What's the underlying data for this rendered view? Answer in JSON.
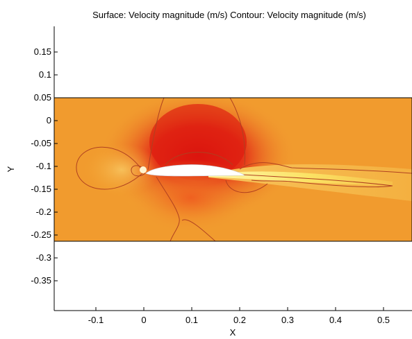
{
  "chart_data": {
    "type": "heatmap",
    "title": "Surface: Velocity magnitude (m/s) Contour: Velocity magnitude (m/s)",
    "xlabel": "X",
    "ylabel": "Y",
    "xlim": [
      -0.18,
      0.56
    ],
    "ylim": [
      -0.39,
      0.2
    ],
    "x_ticks": [
      -0.1,
      0,
      0.1,
      0.2,
      0.3,
      0.4,
      0.5
    ],
    "x_tick_labels": [
      "-0.1",
      "0",
      "0.1",
      "0.2",
      "0.3",
      "0.4",
      "0.5"
    ],
    "y_ticks": [
      0.15,
      0.1,
      0.05,
      0,
      -0.05,
      -0.1,
      -0.15,
      -0.2,
      -0.25,
      -0.3,
      -0.35
    ],
    "y_tick_labels": [
      "0.15",
      "0.1",
      "0.05",
      "0",
      "-0.05",
      "-0.1",
      "-0.15",
      "-0.2",
      "-0.25",
      "-0.3",
      "-0.35"
    ],
    "domain": {
      "x": [
        -0.18,
        0.56
      ],
      "y": [
        -0.25,
        0.05
      ]
    },
    "grid": false,
    "colors": {
      "background": "#f2a230",
      "high_speed": "#d01010",
      "wake": "#fff080",
      "contour": "#b04020",
      "airfoil": "#ffffff"
    }
  }
}
